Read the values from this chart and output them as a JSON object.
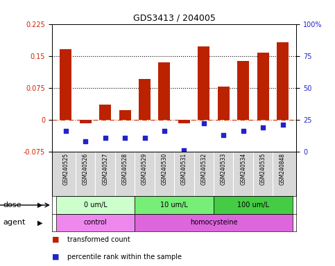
{
  "title": "GDS3413 / 204005",
  "samples": [
    "GSM240525",
    "GSM240526",
    "GSM240527",
    "GSM240528",
    "GSM240529",
    "GSM240530",
    "GSM240531",
    "GSM240532",
    "GSM240533",
    "GSM240534",
    "GSM240535",
    "GSM240848"
  ],
  "transformed_count": [
    0.165,
    -0.008,
    0.035,
    0.022,
    0.095,
    0.135,
    -0.008,
    0.172,
    0.077,
    0.138,
    0.158,
    0.182
  ],
  "percentile_rank_raw": [
    16,
    8,
    11,
    11,
    11,
    16,
    1,
    22,
    13,
    16,
    19,
    21
  ],
  "bar_color": "#bb2200",
  "dot_color": "#2222cc",
  "ylim_left": [
    -0.075,
    0.225
  ],
  "yticks_left": [
    -0.075,
    0.0,
    0.075,
    0.15,
    0.225
  ],
  "ytick_labels_left": [
    "-0.075",
    "0",
    "0.075",
    "0.15",
    "0.225"
  ],
  "ylim_right": [
    0,
    100
  ],
  "yticks_right": [
    0,
    25,
    50,
    75,
    100
  ],
  "ytick_labels_right": [
    "0",
    "25",
    "50",
    "75",
    "100%"
  ],
  "hline_y": [
    0.075,
    0.15
  ],
  "zero_line_y": 0.0,
  "dose_groups": [
    {
      "label": "0 um/L",
      "start": 0,
      "end": 4,
      "color": "#ccffcc"
    },
    {
      "label": "10 um/L",
      "start": 4,
      "end": 8,
      "color": "#77ee77"
    },
    {
      "label": "100 um/L",
      "start": 8,
      "end": 12,
      "color": "#44cc44"
    }
  ],
  "agent_groups": [
    {
      "label": "control",
      "start": 0,
      "end": 4,
      "color": "#ee88ee"
    },
    {
      "label": "homocysteine",
      "start": 4,
      "end": 12,
      "color": "#dd66dd"
    }
  ],
  "legend_items": [
    {
      "label": "transformed count",
      "color": "#bb2200"
    },
    {
      "label": "percentile rank within the sample",
      "color": "#2222cc"
    }
  ],
  "dose_label": "dose",
  "agent_label": "agent",
  "bar_width": 0.6
}
